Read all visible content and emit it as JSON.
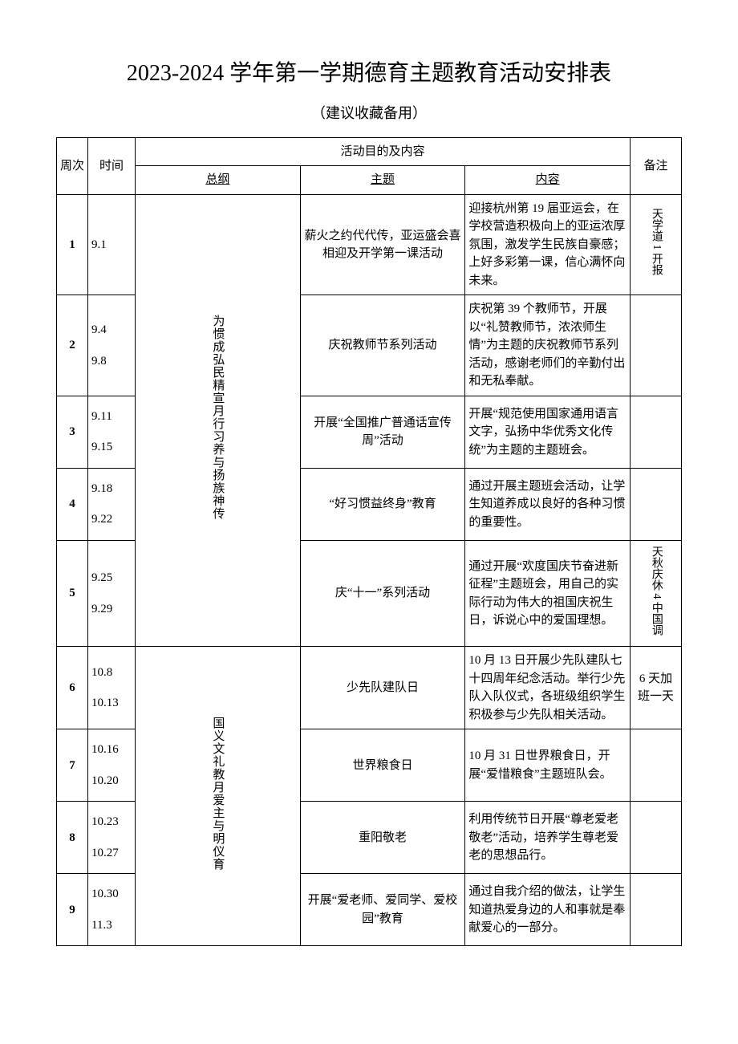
{
  "title": "2023-2024 学年第一学期德育主题教育活动安排表",
  "subtitle": "（建议收藏备用）",
  "headers": {
    "week": "周次",
    "time": "时间",
    "activity": "活动目的及内容",
    "remark": "备注",
    "outline": "总纲",
    "theme": "主题",
    "content": "内容"
  },
  "outline1": "为惯成弘民精宣月行习养与扬族神传",
  "outline2": "国义文礼教月爱主与明仪育",
  "rows": [
    {
      "week": "1",
      "time": "9.1",
      "theme": "薪火之约代代传，亚运盛会喜相迎及开学第一课活动",
      "content": "迎接杭州第 19 届亚运会，在学校营造积极向上的亚运浓厚氛围，激发学生民族自豪感；上好多彩第一课，信心满怀向未来。",
      "remark": "天学道 1 开报"
    },
    {
      "week": "2",
      "time1": "9.4",
      "time2": "9.8",
      "theme": "庆祝教师节系列活动",
      "content": "庆祝第 39 个教师节，开展以“礼赞教师节，浓浓师生情”为主题的庆祝教师节系列活动，感谢老师们的辛勤付出和无私奉献。",
      "remark": ""
    },
    {
      "week": "3",
      "time1": "9.11",
      "time2": "9.15",
      "theme": "开展“全国推广普通话宣传周”活动",
      "content": "开展“规范使用国家通用语言文字，弘扬中华优秀文化传统”为主题的主题班会。",
      "remark": ""
    },
    {
      "week": "4",
      "time1": "9.18",
      "time2": "9.22",
      "theme": "“好习惯益终身”教育",
      "content": "通过开展主题班会活动，让学生知道养成以良好的各种习惯的重要性。",
      "remark": ""
    },
    {
      "week": "5",
      "time1": "9.25",
      "time2": "9.29",
      "theme": "庆“十一”系列活动",
      "content": "通过开展“欢度国庆节奋进新征程”主题班会，用自己的实际行动为伟大的祖国庆祝生日，诉说心中的爱国理想。",
      "remark": "天秋庆休 4 中国调"
    },
    {
      "week": "6",
      "time1": "10.8",
      "time2": "10.13",
      "theme": "少先队建队日",
      "content": "10 月 13 日开展少先队建队七十四周年纪念活动。举行少先队入队仪式，各班级组织学生积极参与少先队相关活动。",
      "remark": "6 天加班一天"
    },
    {
      "week": "7",
      "time1": "10.16",
      "time2": "10.20",
      "theme": "世界粮食日",
      "content": "10 月 31 日世界粮食日，开展“爱惜粮食”主题班队会。",
      "remark": ""
    },
    {
      "week": "8",
      "time1": "10.23",
      "time2": "10.27",
      "theme": "重阳敬老",
      "content": "利用传统节日开展“尊老爱老敬老”活动，培养学生尊老爱老的思想品行。",
      "remark": ""
    },
    {
      "week": "9",
      "time1": "10.30",
      "time2": "11.3",
      "theme": "开展“爱老师、爱同学、爱校园”教育",
      "content": "通过自我介绍的做法，让学生知道热爱身边的人和事就是奉献爱心的一部分。",
      "remark": ""
    }
  ]
}
